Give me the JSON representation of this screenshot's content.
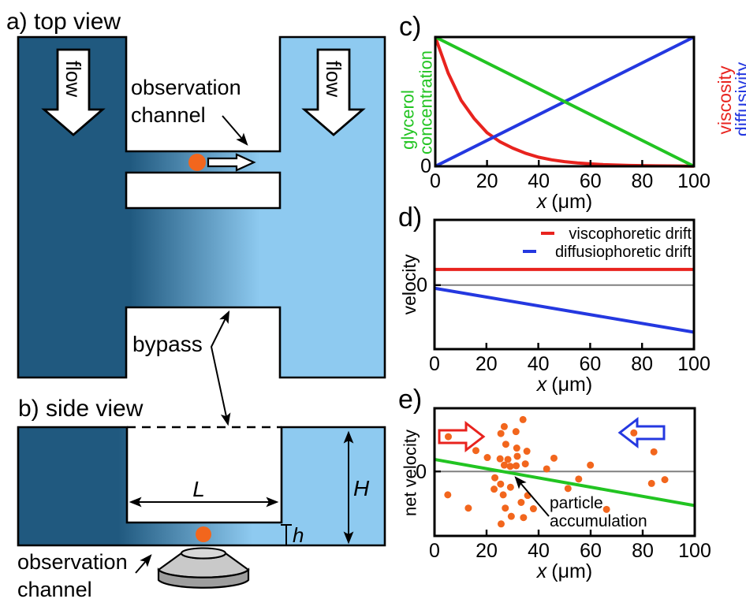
{
  "colors": {
    "dark_blue": "#20597f",
    "light_blue": "#8ecaf0",
    "orange": "#f2661d",
    "chart_green": "#22c422",
    "chart_red": "#e8231e",
    "chart_blue": "#2438e0",
    "zero_gray": "#808080",
    "lens_light": "#c9c9c9",
    "lens_dark": "#9e9e9e",
    "lens_top": "#d8d8d8"
  },
  "labels": {
    "observation": "observation",
    "channel": "channel",
    "zero": "0",
    "x_var": "x",
    "x_unit": "(μm)"
  },
  "panel_a": {
    "title": "a) top view",
    "flow_label": "flow",
    "bypass_label": "bypass"
  },
  "panel_b": {
    "title": "b) side view",
    "dim_length": "L",
    "dim_height": "H",
    "dim_channel_height": "h"
  },
  "chart_data": [
    {
      "panel_label": "c)",
      "type": "line",
      "xlabel": "x (μm)",
      "ylabel_left_line1": "glycerol",
      "ylabel_left_line2": "concentration",
      "ylabel_right_line1": "viscosity",
      "ylabel_right_line2": "diffusivity",
      "xlim": [
        0,
        100
      ],
      "ylim": [
        0,
        1
      ],
      "x_ticks": [
        0,
        20,
        40,
        60,
        80,
        100
      ],
      "y_tick_labels": [
        "0"
      ],
      "series": [
        {
          "name": "viscosity",
          "color": "#e8231e",
          "x": [
            0,
            5,
            10,
            15,
            20,
            25,
            30,
            35,
            40,
            45,
            50,
            55,
            60,
            65,
            70,
            75,
            80,
            85,
            90,
            95,
            100
          ],
          "y": [
            1,
            0.72,
            0.51,
            0.37,
            0.26,
            0.19,
            0.14,
            0.1,
            0.07,
            0.05,
            0.036,
            0.026,
            0.019,
            0.013,
            0.01,
            0.007,
            0.005,
            0.004,
            0.003,
            0.002,
            0.001
          ]
        },
        {
          "name": "diffusivity",
          "color": "#2438e0",
          "x": [
            0,
            100
          ],
          "y": [
            0,
            1
          ]
        },
        {
          "name": "glycerol concentration",
          "color": "#22c422",
          "x": [
            0,
            100
          ],
          "y": [
            1,
            0
          ]
        }
      ]
    },
    {
      "panel_label": "d)",
      "type": "line",
      "xlabel": "x (μm)",
      "ylabel": "velocity",
      "xlim": [
        0,
        100
      ],
      "ylim": [
        -1.02,
        1.04
      ],
      "x_ticks": [
        0,
        20,
        40,
        60,
        80,
        100
      ],
      "y_tick_labels": [
        "0"
      ],
      "zero_line": true,
      "legend": [
        {
          "label": "viscophoretic drift",
          "color": "#e8231e"
        },
        {
          "label": "diffusiophoretic drift",
          "color": "#2438e0"
        }
      ],
      "series": [
        {
          "name": "diffusiophoretic drift",
          "color": "#2438e0",
          "x": [
            0,
            100
          ],
          "y": [
            -0.05,
            -0.75
          ]
        },
        {
          "name": "viscophoretic drift",
          "color": "#e8231e",
          "x": [
            0,
            100
          ],
          "y": [
            0.25,
            0.25
          ]
        }
      ]
    },
    {
      "panel_label": "e)",
      "type": "scatter",
      "xlabel": "x (μm)",
      "ylabel": "net velocity",
      "xlim": [
        0,
        100
      ],
      "ylim": [
        -1.02,
        1.0
      ],
      "x_ticks": [
        0,
        20,
        40,
        60,
        80,
        100
      ],
      "y_tick_labels": [
        "0"
      ],
      "zero_line": true,
      "annotation_line1": "particle",
      "annotation_line2": "accumulation",
      "flow_arrows": [
        {
          "direction": "right",
          "color": "#e8231e"
        },
        {
          "direction": "left",
          "color": "#2438e0"
        }
      ],
      "series": [
        {
          "name": "net velocity trend",
          "color": "#22c422",
          "x": [
            0,
            100
          ],
          "y": [
            0.19,
            -0.54
          ]
        }
      ],
      "scatter": {
        "name": "particles",
        "color": "#f2661d",
        "points": [
          [
            5.3,
            0.55
          ],
          [
            15.9,
            0.33
          ],
          [
            20.3,
            0.22
          ],
          [
            25.5,
            0.6
          ],
          [
            26.8,
            0.71
          ],
          [
            27.4,
            0.43
          ],
          [
            25.2,
            0.2
          ],
          [
            26.8,
            0.1
          ],
          [
            28.2,
            0.19
          ],
          [
            29.1,
            0.08
          ],
          [
            31.3,
            0.63
          ],
          [
            31.6,
            0.37
          ],
          [
            31.8,
            0.24
          ],
          [
            31.4,
            0.09
          ],
          [
            34,
            0.82
          ],
          [
            35.5,
            0.32
          ],
          [
            34.9,
            0.12
          ],
          [
            23.2,
            -0.1
          ],
          [
            22.9,
            -0.28
          ],
          [
            25.4,
            -0.2
          ],
          [
            26.4,
            -0.37
          ],
          [
            27.2,
            -0.58
          ],
          [
            29.2,
            -0.25
          ],
          [
            29.5,
            -0.71
          ],
          [
            33.3,
            -0.49
          ],
          [
            34.2,
            -0.73
          ],
          [
            35.8,
            -0.38
          ],
          [
            38,
            -0.59
          ],
          [
            43.1,
            0.04
          ],
          [
            45.9,
            0.21
          ],
          [
            51.3,
            -0.27
          ],
          [
            55.4,
            -0.12
          ],
          [
            59.9,
            0.1
          ],
          [
            66.1,
            -0.6
          ],
          [
            76.6,
            0.61
          ],
          [
            83.4,
            -0.19
          ],
          [
            84.3,
            0.31
          ],
          [
            88.5,
            -0.13
          ],
          [
            5.1,
            -0.37
          ],
          [
            13,
            -0.58
          ],
          [
            25.6,
            -0.83
          ]
        ]
      }
    }
  ]
}
